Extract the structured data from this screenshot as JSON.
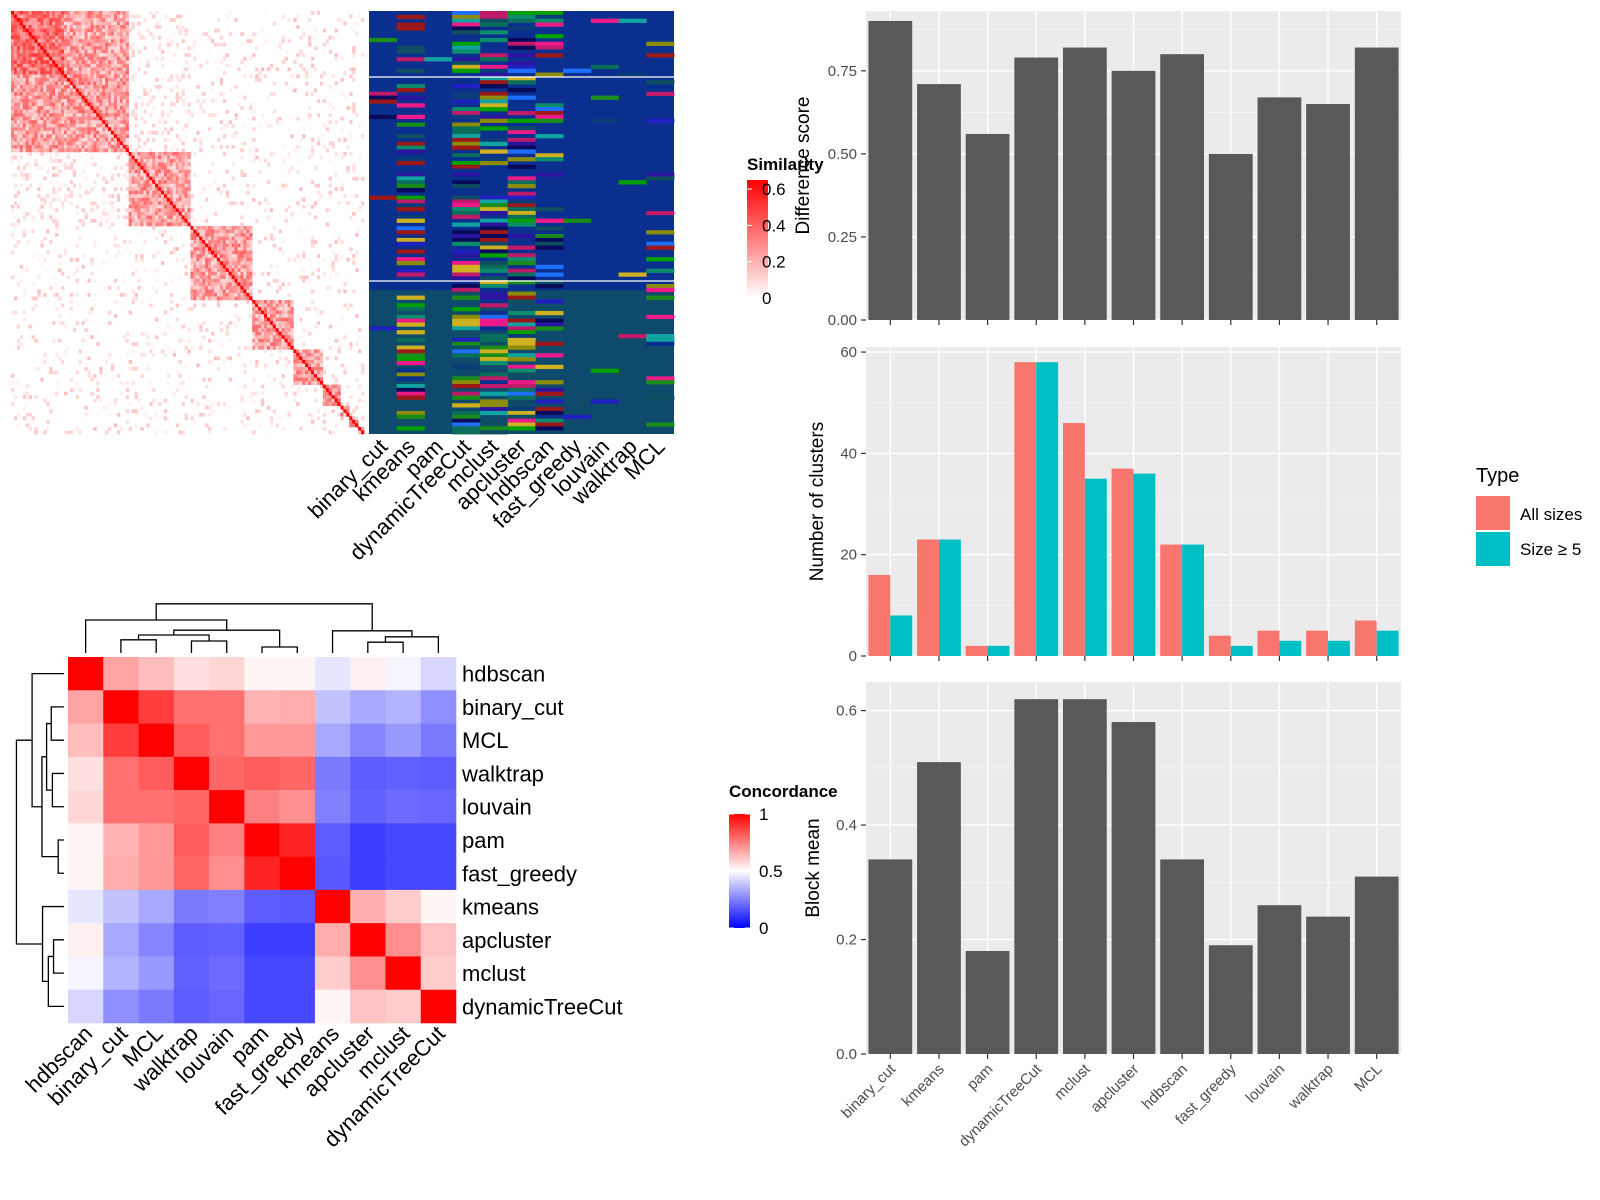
{
  "chart_data": [
    {
      "type": "heatmap",
      "panel": "similarity-heatmap",
      "legend": {
        "title": "Similarity",
        "ticks": [
          "0.6",
          "0.4",
          "0.2",
          "0"
        ],
        "tick_values": [
          0.6,
          0.4,
          0.2,
          0
        ],
        "range": [
          0,
          0.65
        ],
        "colors": [
          "#ffffff",
          "#ff0000"
        ]
      },
      "n_terms_approx": 340,
      "block_fractions": [
        0.33,
        0.18,
        0.17,
        0.12,
        0.08,
        0.05,
        0.03,
        0.02,
        0.02
      ]
    },
    {
      "type": "heatmap",
      "panel": "cluster-annotation",
      "columns": [
        "binary_cut",
        "kmeans",
        "pam",
        "dynamicTreeCut",
        "mclust",
        "apcluster",
        "hdbscan",
        "fast_greedy",
        "louvain",
        "walktrap",
        "MCL"
      ],
      "palette": [
        "#08308e",
        "#0a3c7a",
        "#0f4d63",
        "#0a6e5a",
        "#0c8c6c",
        "#ef1a8a",
        "#c01a6a",
        "#9c1818",
        "#1a8c1a",
        "#00a000",
        "#8c8c0a",
        "#cfb020",
        "#0a0a5a",
        "#2a14a0",
        "#2020c0",
        "#1f6fff",
        "#10a3a0"
      ],
      "background": "#0a2f8f",
      "second_background": "#0d4a6b"
    },
    {
      "type": "heatmap",
      "panel": "concordance-heatmap",
      "legend": {
        "title": "Concordance",
        "ticks": [
          "1",
          "0.5",
          "0"
        ],
        "tick_values": [
          1,
          0.5,
          0
        ],
        "colors": [
          "#0000ff",
          "#ffffff",
          "#ff0000"
        ]
      },
      "row_labels": [
        "hdbscan",
        "binary_cut",
        "MCL",
        "walktrap",
        "louvain",
        "pam",
        "fast_greedy",
        "kmeans",
        "apcluster",
        "mclust",
        "dynamicTreeCut"
      ],
      "col_labels": [
        "hdbscan",
        "binary_cut",
        "MCL",
        "walktrap",
        "louvain",
        "pam",
        "fast_greedy",
        "kmeans",
        "apcluster",
        "mclust",
        "dynamicTreeCut"
      ],
      "values": [
        [
          1.0,
          0.68,
          0.63,
          0.56,
          0.58,
          0.52,
          0.52,
          0.45,
          0.53,
          0.48,
          0.42
        ],
        [
          0.68,
          1.0,
          0.88,
          0.78,
          0.78,
          0.65,
          0.66,
          0.38,
          0.33,
          0.35,
          0.28
        ],
        [
          0.63,
          0.88,
          1.0,
          0.82,
          0.78,
          0.7,
          0.7,
          0.33,
          0.26,
          0.3,
          0.24
        ],
        [
          0.56,
          0.78,
          0.82,
          1.0,
          0.8,
          0.82,
          0.8,
          0.24,
          0.18,
          0.19,
          0.18
        ],
        [
          0.58,
          0.78,
          0.78,
          0.8,
          1.0,
          0.75,
          0.72,
          0.25,
          0.19,
          0.21,
          0.2
        ],
        [
          0.52,
          0.65,
          0.7,
          0.82,
          0.75,
          1.0,
          0.93,
          0.18,
          0.12,
          0.14,
          0.14
        ],
        [
          0.52,
          0.66,
          0.7,
          0.8,
          0.72,
          0.93,
          1.0,
          0.17,
          0.12,
          0.14,
          0.14
        ],
        [
          0.45,
          0.38,
          0.33,
          0.24,
          0.25,
          0.18,
          0.17,
          1.0,
          0.66,
          0.6,
          0.52
        ],
        [
          0.53,
          0.33,
          0.26,
          0.18,
          0.19,
          0.12,
          0.12,
          0.66,
          1.0,
          0.72,
          0.62
        ],
        [
          0.48,
          0.35,
          0.3,
          0.19,
          0.21,
          0.14,
          0.14,
          0.6,
          0.72,
          1.0,
          0.6
        ],
        [
          0.42,
          0.28,
          0.24,
          0.18,
          0.2,
          0.14,
          0.14,
          0.52,
          0.62,
          0.6,
          1.0
        ]
      ]
    },
    {
      "type": "bar",
      "panel": "difference-score",
      "categories": [
        "binary_cut",
        "kmeans",
        "pam",
        "dynamicTreeCut",
        "mclust",
        "apcluster",
        "hdbscan",
        "fast_greedy",
        "louvain",
        "walktrap",
        "MCL"
      ],
      "values": [
        0.9,
        0.71,
        0.56,
        0.79,
        0.82,
        0.75,
        0.8,
        0.5,
        0.67,
        0.65,
        0.82
      ],
      "ylabel": "Difference score",
      "ylim": [
        0,
        0.93
      ],
      "yticks": [
        0,
        0.25,
        0.5,
        0.75
      ],
      "ytick_labels": [
        "0.00",
        "0.25",
        "0.50",
        "0.75"
      ],
      "show_x_labels": false,
      "bar_color": "#595959"
    },
    {
      "type": "bar",
      "panel": "number-of-clusters",
      "categories": [
        "binary_cut",
        "kmeans",
        "pam",
        "dynamicTreeCut",
        "mclust",
        "apcluster",
        "hdbscan",
        "fast_greedy",
        "louvain",
        "walktrap",
        "MCL"
      ],
      "series": [
        {
          "name": "All sizes",
          "color": "#f8766d",
          "values": [
            16,
            23,
            2,
            58,
            46,
            37,
            22,
            4,
            5,
            5,
            7
          ]
        },
        {
          "name": "Size ≥ 5",
          "color": "#00bfc4",
          "values": [
            8,
            23,
            2,
            58,
            35,
            36,
            22,
            2,
            3,
            3,
            5
          ]
        }
      ],
      "ylabel": "Number of clusters",
      "ylim": [
        0,
        61
      ],
      "yticks": [
        0,
        20,
        40,
        60
      ],
      "ytick_labels": [
        "0",
        "20",
        "40",
        "60"
      ],
      "legend_title": "Type",
      "legend_placement": "right",
      "show_x_labels": false
    },
    {
      "type": "bar",
      "panel": "block-mean",
      "categories": [
        "binary_cut",
        "kmeans",
        "pam",
        "dynamicTreeCut",
        "mclust",
        "apcluster",
        "hdbscan",
        "fast_greedy",
        "louvain",
        "walktrap",
        "MCL"
      ],
      "values": [
        0.34,
        0.51,
        0.18,
        0.62,
        0.62,
        0.58,
        0.34,
        0.19,
        0.26,
        0.24,
        0.31
      ],
      "ylabel": "Block mean",
      "ylim": [
        0,
        0.65
      ],
      "yticks": [
        0,
        0.2,
        0.4,
        0.6
      ],
      "ytick_labels": [
        "0.0",
        "0.2",
        "0.4",
        "0.6"
      ],
      "show_x_labels": true,
      "bar_color": "#595959"
    }
  ]
}
